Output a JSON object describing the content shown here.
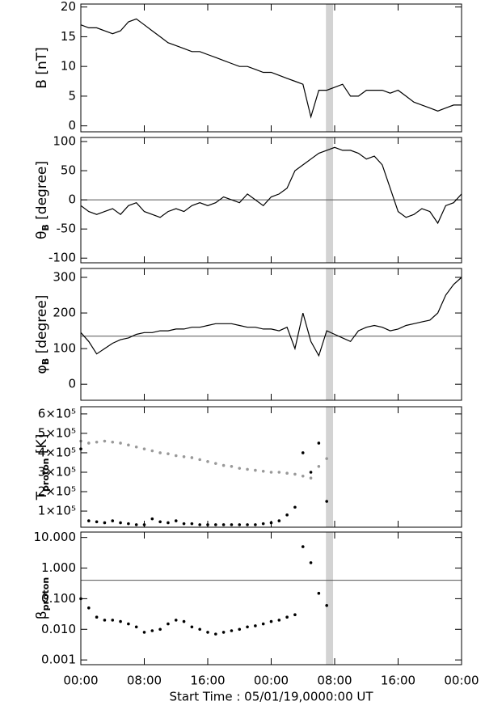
{
  "chart_data": [
    {
      "type": "line",
      "ylabel": {
        "text": "B [nT]"
      },
      "x": [
        0,
        1,
        2,
        3,
        4,
        5,
        6,
        7,
        8,
        9,
        10,
        11,
        12,
        13,
        14,
        15,
        16,
        17,
        18,
        19,
        20,
        21,
        22,
        23,
        24,
        25,
        26,
        27,
        28,
        29,
        30,
        31,
        32,
        33,
        34,
        35,
        36,
        37,
        38,
        39,
        40,
        41,
        42,
        43,
        44,
        45,
        46,
        47,
        48
      ],
      "xlim": [
        0,
        48
      ],
      "xticks": [
        0,
        8,
        16,
        24,
        32,
        40,
        48
      ],
      "shade": [
        30.9,
        31.8
      ],
      "ylim": [
        -1,
        20.5
      ],
      "yticks": [
        0,
        5,
        10,
        15,
        20
      ],
      "series": [
        {
          "color": "#000000",
          "values": [
            17,
            16.5,
            16.5,
            16,
            15.5,
            16,
            17.5,
            18,
            17,
            16,
            15,
            14,
            13.5,
            13,
            12.5,
            12.5,
            12,
            11.5,
            11,
            10.5,
            10,
            10,
            9.5,
            9,
            9,
            8.5,
            8,
            7.5,
            7,
            1.5,
            6,
            6,
            6.5,
            7,
            5,
            5,
            6,
            6,
            6,
            5.5,
            6,
            5,
            4,
            3.5,
            3,
            2.5,
            3,
            3.5,
            3.5
          ]
        }
      ]
    },
    {
      "type": "line",
      "ylabel": {
        "text": "θ",
        "sub": "B",
        "unit": " [degree]"
      },
      "x": [
        0,
        1,
        2,
        3,
        4,
        5,
        6,
        7,
        8,
        9,
        10,
        11,
        12,
        13,
        14,
        15,
        16,
        17,
        18,
        19,
        20,
        21,
        22,
        23,
        24,
        25,
        26,
        27,
        28,
        29,
        30,
        31,
        32,
        33,
        34,
        35,
        36,
        37,
        38,
        39,
        40,
        41,
        42,
        43,
        44,
        45,
        46,
        47,
        48
      ],
      "xlim": [
        0,
        48
      ],
      "xticks": [
        0,
        8,
        16,
        24,
        32,
        40,
        48
      ],
      "shade": [
        30.9,
        31.8
      ],
      "hline": 0,
      "ylim": [
        -108,
        107
      ],
      "yticks": [
        -100,
        -50,
        0,
        50,
        100
      ],
      "series": [
        {
          "color": "#000000",
          "values": [
            -10,
            -20,
            -25,
            -20,
            -15,
            -25,
            -10,
            -5,
            -20,
            -25,
            -30,
            -20,
            -15,
            -20,
            -10,
            -5,
            -10,
            -5,
            5,
            0,
            -5,
            10,
            0,
            -10,
            5,
            10,
            20,
            50,
            60,
            70,
            80,
            85,
            90,
            85,
            85,
            80,
            70,
            75,
            60,
            20,
            -20,
            -30,
            -25,
            -15,
            -20,
            -40,
            -10,
            -5,
            10
          ]
        }
      ]
    },
    {
      "type": "line",
      "ylabel": {
        "text": "φ",
        "sub": "B",
        "unit": " [degree]"
      },
      "x": [
        0,
        1,
        2,
        3,
        4,
        5,
        6,
        7,
        8,
        9,
        10,
        11,
        12,
        13,
        14,
        15,
        16,
        17,
        18,
        19,
        20,
        21,
        22,
        23,
        24,
        25,
        26,
        27,
        28,
        29,
        30,
        31,
        32,
        33,
        34,
        35,
        36,
        37,
        38,
        39,
        40,
        41,
        42,
        43,
        44,
        45,
        46,
        47,
        48
      ],
      "xlim": [
        0,
        48
      ],
      "xticks": [
        0,
        8,
        16,
        24,
        32,
        40,
        48
      ],
      "shade": [
        30.9,
        31.8
      ],
      "hline": 135,
      "ylim": [
        -45,
        325
      ],
      "yticks": [
        0,
        100,
        200,
        300
      ],
      "series": [
        {
          "color": "#000000",
          "values": [
            145,
            120,
            85,
            100,
            115,
            125,
            130,
            140,
            145,
            145,
            150,
            150,
            155,
            155,
            160,
            160,
            165,
            170,
            170,
            170,
            165,
            160,
            160,
            155,
            155,
            150,
            160,
            100,
            200,
            120,
            80,
            150,
            140,
            130,
            120,
            150,
            160,
            165,
            160,
            150,
            155,
            165,
            170,
            175,
            180,
            200,
            250,
            280,
            300
          ]
        }
      ]
    },
    {
      "type": "scatter",
      "ylabel": {
        "text": "T",
        "sub": "proton",
        "unit": " [K]"
      },
      "x": [
        0,
        1,
        2,
        3,
        4,
        5,
        6,
        7,
        8,
        9,
        10,
        11,
        12,
        13,
        14,
        15,
        16,
        17,
        18,
        19,
        20,
        21,
        22,
        23,
        24,
        25,
        26,
        27,
        28,
        29,
        30,
        31,
        32,
        33,
        34,
        35,
        36,
        37,
        38,
        39,
        40,
        41,
        42,
        43,
        44,
        45,
        46,
        47,
        48
      ],
      "xlim": [
        0,
        48
      ],
      "xticks": [
        0,
        8,
        16,
        24,
        32,
        40,
        48
      ],
      "shade": [
        30.9,
        31.8
      ],
      "ylim": [
        17000,
        637000
      ],
      "yticks": [
        {
          "value": 100000,
          "label": "1×10⁵"
        },
        {
          "value": 200000,
          "label": "2×10⁵"
        },
        {
          "value": 300000,
          "label": "3×10⁵"
        },
        {
          "value": 400000,
          "label": "4×10⁵"
        },
        {
          "value": 500000,
          "label": "5×10⁵"
        },
        {
          "value": 600000,
          "label": "6×10⁵"
        }
      ],
      "series": [
        {
          "color": "#999999",
          "values": [
            460000,
            450000,
            455000,
            460000,
            455000,
            450000,
            440000,
            430000,
            420000,
            410000,
            400000,
            395000,
            385000,
            380000,
            375000,
            365000,
            355000,
            345000,
            335000,
            330000,
            320000,
            315000,
            310000,
            305000,
            300000,
            300000,
            295000,
            290000,
            280000,
            270000,
            330000,
            370000,
            null,
            null,
            null,
            null,
            null,
            null,
            null,
            null,
            null,
            null,
            null,
            null,
            null,
            null,
            null,
            null,
            null
          ]
        },
        {
          "color": "#000000",
          "values": [
            420000,
            50000,
            45000,
            40000,
            50000,
            40000,
            35000,
            30000,
            30000,
            60000,
            45000,
            40000,
            50000,
            35000,
            35000,
            30000,
            30000,
            30000,
            30000,
            30000,
            30000,
            30000,
            30000,
            35000,
            40000,
            50000,
            80000,
            120000,
            400000,
            300000,
            450000,
            150000,
            null,
            null,
            null,
            null,
            null,
            null,
            null,
            null,
            null,
            null,
            null,
            null,
            null,
            null,
            null,
            null,
            null
          ]
        }
      ]
    },
    {
      "type": "scatter",
      "ylabel": {
        "text": "β",
        "sub": "proton"
      },
      "log_y": true,
      "x": [
        0,
        1,
        2,
        3,
        4,
        5,
        6,
        7,
        8,
        9,
        10,
        11,
        12,
        13,
        14,
        15,
        16,
        17,
        18,
        19,
        20,
        21,
        22,
        23,
        24,
        25,
        26,
        27,
        28,
        29,
        30,
        31,
        32,
        33,
        34,
        35,
        36,
        37,
        38,
        39,
        40,
        41,
        42,
        43,
        44,
        45,
        46,
        47,
        48
      ],
      "xlim": [
        0,
        48
      ],
      "xticks": [
        {
          "value": 0,
          "label": "00:00"
        },
        {
          "value": 8,
          "label": "08:00"
        },
        {
          "value": 16,
          "label": "16:00"
        },
        {
          "value": 24,
          "label": "00:00"
        },
        {
          "value": 32,
          "label": "08:00"
        },
        {
          "value": 40,
          "label": "16:00"
        },
        {
          "value": 48,
          "label": "00:00"
        }
      ],
      "xlabel": "Start Time : 05/01/19,0000:00 UT",
      "shade": [
        30.9,
        31.8
      ],
      "hline": 0.4,
      "ylim": [
        0.0007,
        15
      ],
      "yticks": [
        {
          "value": 0.001,
          "label": "0.001"
        },
        {
          "value": 0.01,
          "label": "0.010"
        },
        {
          "value": 0.1,
          "label": "0.100"
        },
        {
          "value": 1,
          "label": "1.000"
        },
        {
          "value": 10,
          "label": "10.000"
        }
      ],
      "series": [
        {
          "color": "#000000",
          "values": [
            0.1,
            0.05,
            0.025,
            0.02,
            0.02,
            0.018,
            0.015,
            0.012,
            0.008,
            0.009,
            0.01,
            0.015,
            0.02,
            0.018,
            0.012,
            0.01,
            0.008,
            0.007,
            0.008,
            0.009,
            0.01,
            0.012,
            0.013,
            0.015,
            0.018,
            0.02,
            0.025,
            0.03,
            5,
            1.5,
            0.15,
            0.06,
            null,
            null,
            null,
            null,
            null,
            null,
            null,
            null,
            null,
            null,
            null,
            null,
            null,
            null,
            null,
            null,
            null
          ]
        }
      ]
    }
  ]
}
